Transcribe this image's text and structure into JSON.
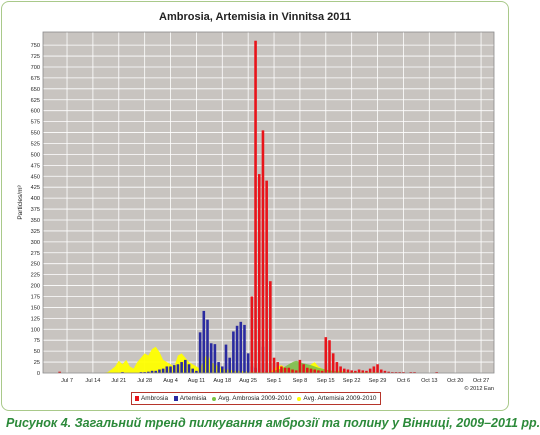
{
  "chart_data": {
    "type": "bar",
    "title": "Ambrosia, Artemisia in Vinnitsa 2011",
    "ylabel": "Particles/m³",
    "xlabel": "",
    "ylim": [
      0,
      780
    ],
    "yticks": [
      0,
      25,
      50,
      75,
      100,
      125,
      150,
      175,
      200,
      225,
      250,
      275,
      300,
      325,
      350,
      375,
      400,
      425,
      450,
      475,
      500,
      525,
      550,
      575,
      600,
      625,
      650,
      675,
      700,
      725,
      750
    ],
    "xtick_labels": [
      "Jul 7",
      "Jul 14",
      "Jul 21",
      "Jul 28",
      "Aug 4",
      "Aug 11",
      "Aug 18",
      "Aug 25",
      "Sep 1",
      "Sep 8",
      "Sep 15",
      "Sep 22",
      "Sep 29",
      "Oct 6",
      "Oct 13",
      "Oct 20",
      "Oct 27"
    ],
    "x_start": "Jul 1",
    "grid": true,
    "legend_position": "bottom",
    "copyright": "© 2012 Ean",
    "series": [
      {
        "name": "Ambrosia",
        "kind": "bar",
        "color": "#e8141a",
        "values": [
          0,
          0,
          0,
          0,
          3,
          0,
          0,
          0,
          0,
          0,
          0,
          0,
          0,
          0,
          0,
          0,
          0,
          0,
          0,
          0,
          0,
          0,
          0,
          0,
          0,
          0,
          0,
          0,
          0,
          0,
          0,
          0,
          0,
          0,
          0,
          0,
          0,
          0,
          0,
          0,
          0,
          0,
          0,
          0,
          0,
          0,
          0,
          0,
          0,
          0,
          0,
          0,
          0,
          0,
          0,
          0,
          175,
          760,
          455,
          555,
          440,
          210,
          35,
          25,
          15,
          12,
          12,
          8,
          6,
          30,
          20,
          12,
          10,
          8,
          6,
          5,
          82,
          75,
          45,
          25,
          15,
          10,
          8,
          6,
          5,
          8,
          6,
          5,
          10,
          15,
          20,
          8,
          5,
          3,
          2,
          2,
          2,
          2,
          0,
          2,
          2,
          0,
          0,
          0,
          0,
          0,
          2,
          0,
          0,
          0,
          0,
          0,
          0,
          0,
          0,
          0,
          0,
          0,
          0,
          0,
          0,
          0
        ]
      },
      {
        "name": "Artemisia",
        "kind": "bar",
        "color": "#2a2aa0",
        "values": [
          0,
          0,
          0,
          0,
          0,
          0,
          0,
          0,
          0,
          0,
          0,
          0,
          0,
          0,
          0,
          0,
          0,
          0,
          0,
          0,
          0,
          2,
          0,
          0,
          0,
          0,
          2,
          2,
          3,
          5,
          5,
          8,
          10,
          15,
          15,
          18,
          20,
          25,
          30,
          20,
          10,
          5,
          93,
          142,
          122,
          68,
          66,
          25,
          15,
          65,
          35,
          95,
          108,
          117,
          110,
          45,
          15,
          12,
          10,
          60,
          5,
          3,
          2,
          2,
          2,
          0,
          0,
          0,
          0,
          0,
          0,
          0,
          0,
          0,
          0,
          0,
          0,
          0,
          0,
          0,
          0,
          0,
          0,
          0,
          0,
          0,
          0,
          0,
          0,
          0,
          0,
          0,
          0,
          0,
          0,
          0,
          0,
          0,
          0,
          0,
          0,
          0,
          0,
          0,
          0,
          0,
          0,
          0,
          0,
          0,
          0,
          0,
          0,
          0,
          0,
          0,
          0,
          0,
          0,
          0,
          0,
          0
        ]
      },
      {
        "name": "Avg. Ambrosia 2009-2010",
        "kind": "area",
        "color": "#7ac143",
        "values": [
          0,
          0,
          0,
          0,
          0,
          0,
          0,
          0,
          0,
          0,
          0,
          0,
          0,
          0,
          0,
          0,
          0,
          0,
          0,
          0,
          0,
          0,
          0,
          0,
          0,
          0,
          0,
          0,
          0,
          0,
          0,
          0,
          0,
          0,
          0,
          0,
          0,
          0,
          0,
          0,
          0,
          0,
          0,
          0,
          0,
          0,
          0,
          0,
          0,
          0,
          0,
          0,
          0,
          0,
          0,
          0,
          0,
          0,
          0,
          0,
          0,
          0,
          5,
          8,
          10,
          15,
          20,
          25,
          28,
          25,
          22,
          20,
          18,
          15,
          12,
          10,
          8,
          6,
          5,
          4,
          3,
          3,
          2,
          2,
          2,
          2,
          1,
          1,
          1,
          0,
          0,
          0,
          0,
          0,
          0,
          0,
          0,
          0,
          0,
          0,
          0,
          0,
          0,
          0,
          0,
          0,
          0,
          0,
          0,
          0,
          0,
          0,
          0,
          0,
          0,
          0,
          0,
          0,
          0,
          0
        ]
      },
      {
        "name": "Avg. Artemisia 2009-2010",
        "kind": "area",
        "color": "#ffff00",
        "values": [
          0,
          0,
          0,
          0,
          0,
          0,
          0,
          0,
          0,
          0,
          0,
          0,
          0,
          0,
          0,
          0,
          0,
          2,
          8,
          15,
          28,
          20,
          30,
          15,
          10,
          25,
          35,
          45,
          40,
          55,
          60,
          48,
          30,
          25,
          20,
          15,
          40,
          45,
          35,
          25,
          20,
          15,
          10,
          30,
          45,
          25,
          20,
          15,
          10,
          8,
          8,
          5,
          5,
          5,
          4,
          3,
          3,
          2,
          2,
          2,
          2,
          2,
          10,
          15,
          18,
          12,
          10,
          8,
          5,
          3,
          2,
          10,
          20,
          25,
          15,
          10,
          8,
          5,
          3,
          5,
          5,
          3,
          2,
          2,
          2,
          2,
          2,
          2,
          2,
          2,
          2,
          0,
          0,
          0,
          0,
          0,
          0,
          0,
          0,
          0,
          0,
          0,
          0,
          0,
          0,
          0,
          0,
          0,
          0,
          0,
          0,
          0,
          0,
          0,
          0,
          0,
          0,
          0
        ]
      }
    ]
  },
  "caption": "Рисунок 4. Загальний тренд пилкування амброзії та полину у Вінниці, 2009–2011 рр."
}
